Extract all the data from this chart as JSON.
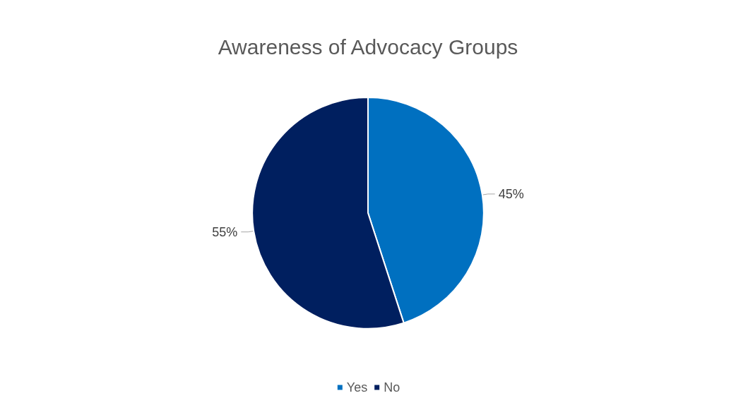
{
  "chart_data": {
    "type": "pie",
    "title": "Awareness of Advocacy Groups",
    "categories": [
      "Yes",
      "No"
    ],
    "values": [
      45,
      55
    ],
    "colors": [
      "#0070c0",
      "#001f5f"
    ],
    "value_labels": [
      "45%",
      "55%"
    ],
    "legend": "bottom"
  }
}
